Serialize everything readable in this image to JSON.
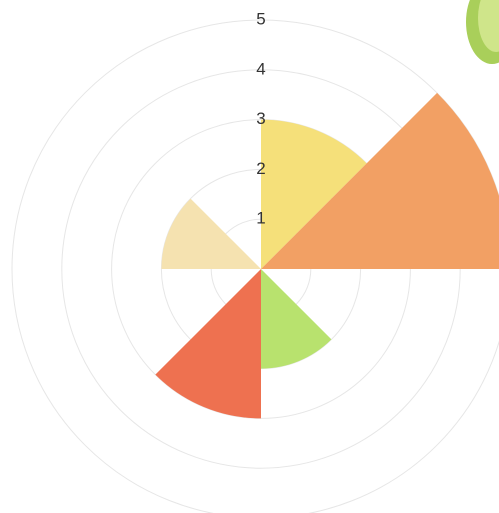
{
  "chart_data": {
    "type": "polar-area",
    "categories": [
      null,
      null,
      null,
      null,
      null,
      null,
      null,
      null
    ],
    "values": [
      3,
      5,
      0,
      2,
      3,
      0,
      2,
      0
    ],
    "colors": [
      "#f5e07a",
      "#f2a064",
      null,
      "#b8e26e",
      "#ee7150",
      null,
      "#f5e2b0",
      null
    ],
    "rlim": [
      0,
      5
    ],
    "rticks": [
      1,
      2,
      3,
      4,
      5
    ],
    "grid": true
  }
}
